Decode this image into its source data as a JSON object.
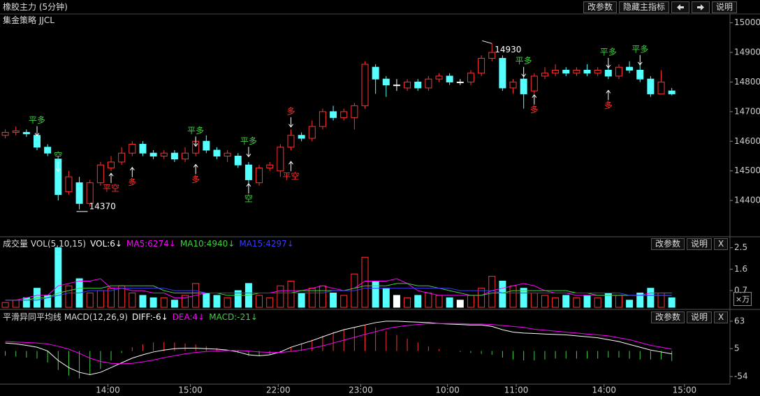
{
  "header": {
    "title": "橡胶主力 (5分钟)",
    "buttons": [
      "改参数",
      "隐藏主指标",
      "说明"
    ]
  },
  "chart_data": [
    {
      "type": "candlestick",
      "title": "集金策略 JJCL",
      "xlim": [
        -0.5,
        68.5
      ],
      "ylim": [
        14280,
        15025
      ],
      "yticks": [
        15000,
        14900,
        14800,
        14700,
        14600,
        14500,
        14400
      ],
      "up_color": "#ff3232",
      "down_color": "#54ffff",
      "flat_color": "#ffffff",
      "open": [
        14620,
        14630,
        14630,
        14620,
        14580,
        14540,
        14430,
        14460,
        14390,
        14460,
        14510,
        14530,
        14560,
        14590,
        14560,
        14550,
        14560,
        14540,
        14560,
        14600,
        14570,
        14550,
        14550,
        14520,
        14460,
        14510,
        14500,
        14580,
        14620,
        14610,
        14650,
        14700,
        14680,
        14680,
        14720,
        14850,
        14810,
        14790,
        14780,
        14800,
        14780,
        14810,
        14820,
        14800,
        14800,
        14830,
        14880,
        14880,
        14780,
        14810,
        14770,
        14820,
        14830,
        14840,
        14830,
        14840,
        14830,
        14840,
        14820,
        14850,
        14840,
        14810,
        14760,
        14770
      ],
      "high": [
        14640,
        14650,
        14640,
        14625,
        14590,
        14550,
        14500,
        14480,
        14470,
        14530,
        14550,
        14580,
        14600,
        14600,
        14570,
        14570,
        14570,
        14580,
        14610,
        14620,
        14580,
        14570,
        14560,
        14530,
        14520,
        14530,
        14590,
        14640,
        14630,
        14670,
        14710,
        14720,
        14710,
        14730,
        14870,
        14860,
        14820,
        14810,
        14810,
        14810,
        14820,
        14830,
        14830,
        14810,
        14840,
        14890,
        14930,
        14890,
        14810,
        14820,
        14830,
        14850,
        14860,
        14850,
        14850,
        14860,
        14850,
        14860,
        14860,
        14870,
        14860,
        14820,
        14840,
        14780
      ],
      "low": [
        14610,
        14620,
        14615,
        14570,
        14550,
        14400,
        14420,
        14370,
        14380,
        14450,
        14500,
        14520,
        14550,
        14550,
        14540,
        14540,
        14530,
        14530,
        14550,
        14560,
        14540,
        14530,
        14510,
        14450,
        14450,
        14500,
        14480,
        14570,
        14600,
        14600,
        14640,
        14670,
        14670,
        14640,
        14710,
        14760,
        14750,
        14770,
        14770,
        14770,
        14770,
        14800,
        14790,
        14790,
        14790,
        14820,
        14870,
        14770,
        14760,
        14710,
        14760,
        14810,
        14820,
        14820,
        14820,
        14820,
        14820,
        14810,
        14810,
        14830,
        14800,
        14750,
        14760,
        14755
      ],
      "close": [
        14630,
        14635,
        14625,
        14580,
        14560,
        14420,
        14480,
        14390,
        14460,
        14520,
        14530,
        14560,
        14590,
        14560,
        14550,
        14560,
        14540,
        14560,
        14600,
        14570,
        14550,
        14560,
        14520,
        14470,
        14510,
        14520,
        14580,
        14620,
        14610,
        14650,
        14700,
        14680,
        14700,
        14720,
        14860,
        14810,
        14790,
        14790,
        14800,
        14780,
        14810,
        14820,
        14800,
        14800,
        14830,
        14880,
        14900,
        14780,
        14800,
        14760,
        14820,
        14830,
        14840,
        14830,
        14840,
        14830,
        14840,
        14820,
        14850,
        14840,
        14810,
        14760,
        14800,
        14760
      ],
      "extremes": [
        {
          "index": 46,
          "value": 14930
        },
        {
          "index": 7,
          "value": 14370
        }
      ],
      "annotations": [
        {
          "text": "平多",
          "index": 3,
          "value": 14670,
          "color": "#3fd13f",
          "arrow": "down"
        },
        {
          "text": "空",
          "index": 5,
          "value": 14550,
          "color": "#3fd13f",
          "arrow": "down"
        },
        {
          "text": "平空",
          "index": 10,
          "value": 14440,
          "color": "#ff3232",
          "arrow": "up"
        },
        {
          "text": "多",
          "index": 12,
          "value": 14460,
          "color": "#ff3232",
          "arrow": "up"
        },
        {
          "text": "平多",
          "index": 18,
          "value": 14635,
          "color": "#3fd13f",
          "arrow": "down"
        },
        {
          "text": "多",
          "index": 18,
          "value": 14470,
          "color": "#ff3232",
          "arrow": "up"
        },
        {
          "text": "平多",
          "index": 23,
          "value": 14600,
          "color": "#3fd13f",
          "arrow": "down"
        },
        {
          "text": "空",
          "index": 23,
          "value": 14405,
          "color": "#3fd13f",
          "arrow": "up"
        },
        {
          "text": "平空",
          "index": 27,
          "value": 14480,
          "color": "#ff3232",
          "arrow": "up"
        },
        {
          "text": "多",
          "index": 27,
          "value": 14700,
          "color": "#ff3232",
          "arrow": "down"
        },
        {
          "text": "平多",
          "index": 49,
          "value": 14870,
          "color": "#3fd13f",
          "arrow": "down"
        },
        {
          "text": "多",
          "index": 50,
          "value": 14705,
          "color": "#ff3232",
          "arrow": "up"
        },
        {
          "text": "平多",
          "index": 57,
          "value": 14900,
          "color": "#3fd13f",
          "arrow": "down"
        },
        {
          "text": "多",
          "index": 57,
          "value": 14720,
          "color": "#ff3232",
          "arrow": "up"
        },
        {
          "text": "平多",
          "index": 60,
          "value": 14910,
          "color": "#3fd13f",
          "arrow": "down"
        }
      ]
    },
    {
      "type": "volume",
      "title": "成交量 VOL(5,10,15)",
      "readouts": [
        {
          "text": "VOL:6↓",
          "color": "#ffffff"
        },
        {
          "text": "MA5:6274↓",
          "color": "#ff00ff"
        },
        {
          "text": "MA10:4940↓",
          "color": "#3fd13f"
        },
        {
          "text": "MA15:4297↓",
          "color": "#3a3aff"
        }
      ],
      "buttons": [
        "改参数",
        "说明",
        "X"
      ],
      "unit": "×万",
      "xlim": [
        -0.5,
        68.5
      ],
      "ylim": [
        0,
        2.9
      ],
      "yticks": [
        2.5,
        1.6,
        0.7
      ],
      "values": [
        0.2,
        0.3,
        0.4,
        0.8,
        0.5,
        2.5,
        0.9,
        1.2,
        0.6,
        0.7,
        0.8,
        0.9,
        0.6,
        0.5,
        0.4,
        0.4,
        0.3,
        0.5,
        1.0,
        0.6,
        0.5,
        0.4,
        0.7,
        1.0,
        0.5,
        0.4,
        0.9,
        1.1,
        0.6,
        0.8,
        0.9,
        0.6,
        0.5,
        1.4,
        2.1,
        1.1,
        0.8,
        0.5,
        0.4,
        0.5,
        0.6,
        0.5,
        0.4,
        0.3,
        0.5,
        0.8,
        1.3,
        1.1,
        0.9,
        0.8,
        0.6,
        0.5,
        0.4,
        0.5,
        0.4,
        0.5,
        0.4,
        0.6,
        0.5,
        0.3,
        0.6,
        0.8,
        0.6,
        0.4
      ],
      "lines": [
        {
          "color": "#ff00ff",
          "values": [
            0.3,
            0.3,
            0.4,
            0.5,
            0.5,
            0.9,
            1.0,
            1.1,
            1.1,
            1.2,
            0.8,
            0.8,
            0.7,
            0.7,
            0.6,
            0.6,
            0.4,
            0.4,
            0.5,
            0.6,
            0.6,
            0.6,
            0.6,
            0.6,
            0.6,
            0.6,
            0.7,
            0.7,
            0.7,
            0.8,
            0.9,
            0.8,
            0.7,
            0.8,
            1.1,
            1.1,
            1.1,
            1.2,
            1.0,
            0.7,
            0.6,
            0.5,
            0.5,
            0.5,
            0.5,
            0.5,
            0.7,
            0.8,
            0.9,
            1.0,
            0.9,
            0.7,
            0.6,
            0.6,
            0.5,
            0.5,
            0.5,
            0.5,
            0.5,
            0.5,
            0.5,
            0.6,
            0.6,
            0.6
          ]
        },
        {
          "color": "#3fd13f",
          "values": [
            0.3,
            0.3,
            0.3,
            0.4,
            0.4,
            0.6,
            0.7,
            0.8,
            0.8,
            0.8,
            0.9,
            0.9,
            0.9,
            0.9,
            0.9,
            0.7,
            0.6,
            0.6,
            0.6,
            0.6,
            0.6,
            0.5,
            0.5,
            0.5,
            0.6,
            0.6,
            0.6,
            0.6,
            0.7,
            0.7,
            0.7,
            0.7,
            0.7,
            0.8,
            0.9,
            0.9,
            0.9,
            1.0,
            1.0,
            0.9,
            0.9,
            0.8,
            0.7,
            0.6,
            0.5,
            0.5,
            0.6,
            0.6,
            0.7,
            0.7,
            0.7,
            0.7,
            0.7,
            0.7,
            0.6,
            0.6,
            0.5,
            0.5,
            0.5,
            0.5,
            0.5,
            0.5,
            0.5,
            0.5
          ]
        },
        {
          "color": "#3a3aff",
          "values": [
            0.3,
            0.3,
            0.3,
            0.3,
            0.4,
            0.5,
            0.6,
            0.6,
            0.7,
            0.7,
            0.7,
            0.8,
            0.8,
            0.8,
            0.8,
            0.8,
            0.7,
            0.7,
            0.7,
            0.6,
            0.6,
            0.6,
            0.6,
            0.6,
            0.6,
            0.6,
            0.6,
            0.6,
            0.6,
            0.6,
            0.6,
            0.7,
            0.7,
            0.7,
            0.8,
            0.8,
            0.8,
            0.8,
            0.8,
            0.8,
            0.8,
            0.8,
            0.8,
            0.7,
            0.7,
            0.7,
            0.7,
            0.6,
            0.6,
            0.6,
            0.6,
            0.6,
            0.6,
            0.6,
            0.6,
            0.6,
            0.6,
            0.6,
            0.6,
            0.5,
            0.5,
            0.5,
            0.5,
            0.5
          ]
        }
      ]
    },
    {
      "type": "macd",
      "title": "平滑异同平均线 MACD(12,26,9)",
      "readouts": [
        {
          "text": "DIFF:-6↓",
          "color": "#ffffff"
        },
        {
          "text": "DEA:4↓",
          "color": "#ff00ff"
        },
        {
          "text": "MACD:-21↓",
          "color": "#3fd13f"
        }
      ],
      "buttons": [
        "改参数",
        "说明",
        "X"
      ],
      "xlim": [
        -0.5,
        68.5
      ],
      "ylim": [
        -70,
        85
      ],
      "yticks": [
        63,
        5,
        -54
      ],
      "xticks": [
        {
          "value": 9.7,
          "label": "14:00"
        },
        {
          "value": 17.5,
          "label": "15:00"
        },
        {
          "value": 25.8,
          "label": "22:00"
        },
        {
          "value": 33.6,
          "label": "23:00"
        },
        {
          "value": 41.8,
          "label": "10:00"
        },
        {
          "value": 48.3,
          "label": "11:00"
        },
        {
          "value": 56.6,
          "label": "14:00"
        },
        {
          "value": 64.2,
          "label": "15:00"
        }
      ],
      "pos_color": "#ff3232",
      "neg_color": "#3fd13f",
      "histogram": [
        -10,
        -12,
        -14,
        -16,
        -24,
        -40,
        -52,
        -58,
        -50,
        -38,
        -20,
        -4,
        8,
        14,
        18,
        19,
        18,
        16,
        14,
        10,
        6,
        2,
        -4,
        -10,
        -10,
        -8,
        -2,
        8,
        16,
        24,
        32,
        40,
        46,
        50,
        54,
        50,
        42,
        34,
        26,
        18,
        10,
        4,
        0,
        -2,
        -4,
        -6,
        -8,
        -14,
        -18,
        -20,
        -20,
        -18,
        -16,
        -16,
        -16,
        -16,
        -16,
        -14,
        -14,
        -16,
        -18,
        -18,
        -18,
        -21
      ],
      "lines": [
        {
          "color": "#ffffff",
          "values": [
            17,
            15,
            12,
            8,
            0,
            -20,
            -35,
            -45,
            -50,
            -45,
            -35,
            -25,
            -15,
            -8,
            -2,
            2,
            5,
            6,
            6,
            5,
            4,
            2,
            -2,
            -8,
            -10,
            -8,
            -2,
            8,
            15,
            22,
            30,
            38,
            45,
            50,
            55,
            60,
            63,
            63,
            62,
            61,
            60,
            58,
            57,
            56,
            55,
            55,
            52,
            45,
            40,
            38,
            37,
            36,
            35,
            34,
            32,
            30,
            28,
            24,
            20,
            14,
            8,
            2,
            -2,
            -6
          ]
        },
        {
          "color": "#ff00ff",
          "values": [
            20,
            19,
            18,
            17,
            15,
            10,
            4,
            -5,
            -15,
            -22,
            -26,
            -27,
            -26,
            -23,
            -19,
            -14,
            -10,
            -6,
            -3,
            -1,
            0,
            1,
            1,
            0,
            -2,
            -3,
            -3,
            -1,
            2,
            6,
            11,
            17,
            23,
            29,
            35,
            41,
            47,
            51,
            54,
            56,
            58,
            58,
            58,
            58,
            57,
            57,
            56,
            54,
            52,
            50,
            46,
            44,
            42,
            40,
            38,
            36,
            34,
            32,
            28,
            24,
            18,
            12,
            8,
            4
          ]
        }
      ]
    }
  ]
}
